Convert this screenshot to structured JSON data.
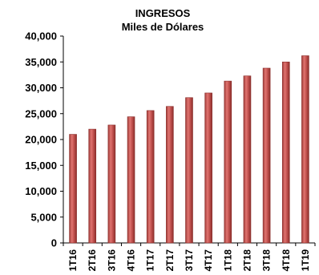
{
  "chart_data": {
    "type": "bar",
    "title": "INGRESOS",
    "subtitle": "Miles de Dólares",
    "xlabel": "",
    "ylabel": "",
    "categories": [
      "1T16",
      "2T16",
      "3T16",
      "4T16",
      "1T17",
      "2T17",
      "3T17",
      "4T17",
      "1T18",
      "2T18",
      "3T18",
      "4T18",
      "1T19"
    ],
    "values": [
      21000,
      22000,
      22800,
      24400,
      25600,
      26400,
      28100,
      29000,
      31300,
      32300,
      33800,
      35000,
      36200
    ],
    "ylim": [
      0,
      40000
    ],
    "yticks": [
      "0",
      "5,000",
      "10,000",
      "15,000",
      "20,000",
      "25,000",
      "30,000",
      "35,000",
      "40,000"
    ],
    "grid": false,
    "legend": "none",
    "bar_color": "#c0504d",
    "bar_edge_color": "#8b2e2b"
  }
}
